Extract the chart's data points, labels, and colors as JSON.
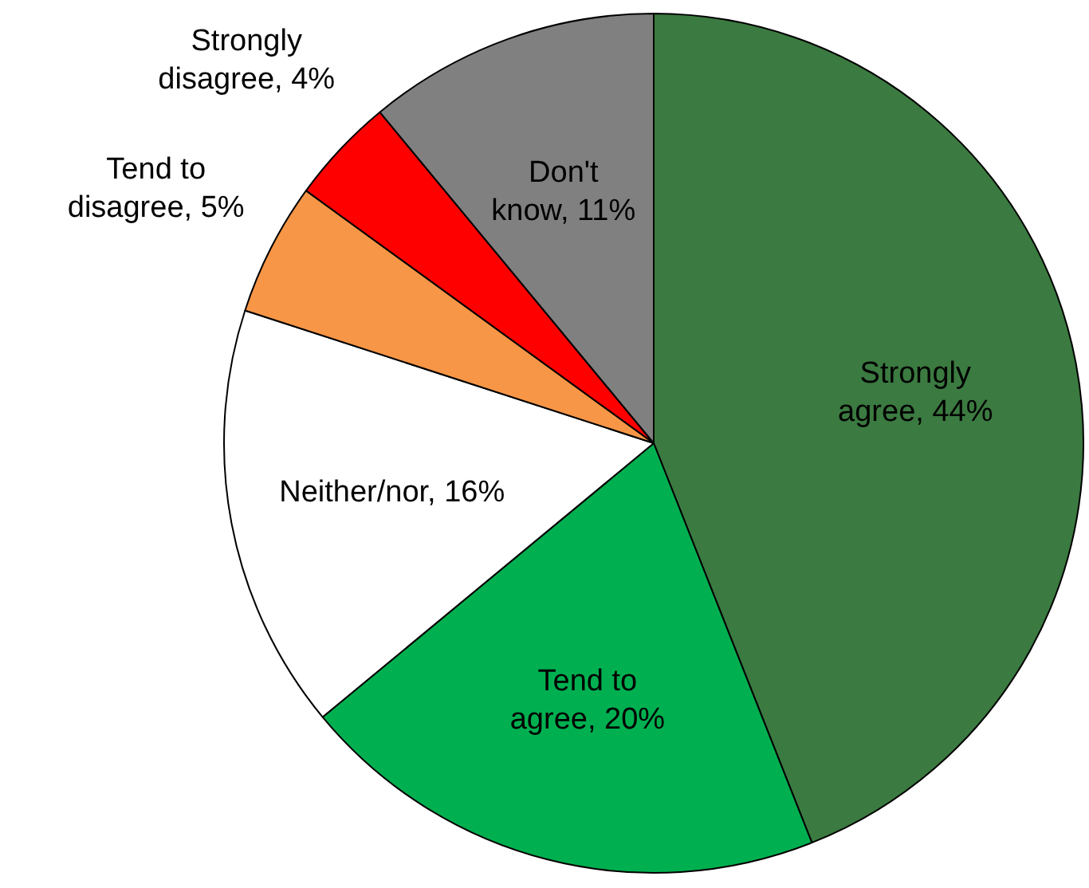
{
  "chart_data": {
    "type": "pie",
    "categories": [
      "Strongly agree",
      "Tend to agree",
      "Neither/nor",
      "Tend to disagree",
      "Strongly disagree",
      "Don't know"
    ],
    "values": [
      44,
      20,
      16,
      5,
      4,
      11
    ],
    "value_labels": [
      "44%",
      "20%",
      "16%",
      "5%",
      "4%",
      "11%"
    ],
    "colors": [
      "#3b7a40",
      "#00b050",
      "#ffffff",
      "#f79646",
      "#ff0000",
      "#808080"
    ],
    "legend": false
  }
}
